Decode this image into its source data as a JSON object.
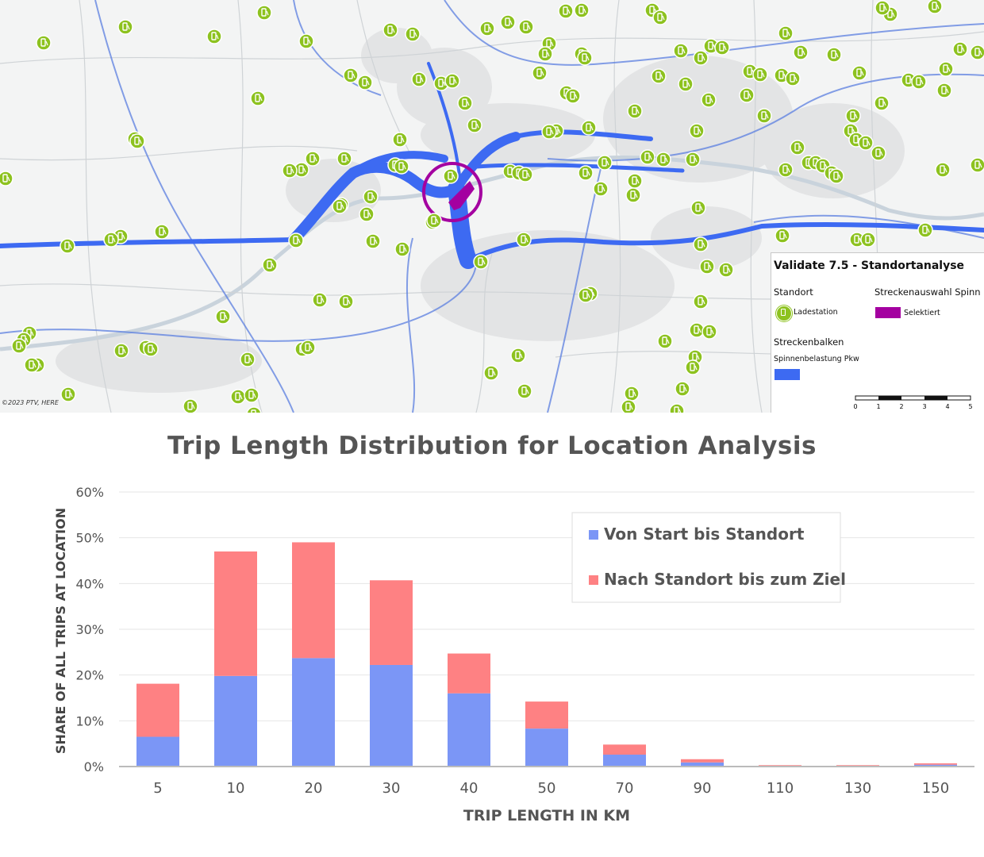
{
  "map": {
    "attribution": "©2023 PTV, HERE",
    "legend": {
      "title": "Validate 7.5 - Standortanalyse",
      "standort_heading": "Standort",
      "standort_item": "Ladestation",
      "strecken_heading": "Streckenauswahl Spinn",
      "strecken_item": "Selektiert",
      "balken_heading": "Streckenbalken",
      "balken_item": "Spinnenbelastung Pkw",
      "scale_labels": [
        "0",
        "1",
        "2",
        "3",
        "4",
        "5"
      ]
    },
    "colors": {
      "station": "#8dc21f",
      "flow": "#3d6af2",
      "selected": "#a400a0"
    },
    "icon": "charging-station-icon"
  },
  "chart_data": {
    "type": "bar",
    "stacked": true,
    "title": "Trip Length Distribution for Location Analysis",
    "xlabel": "TRIP LENGTH IN KM",
    "ylabel": "SHARE OF ALL TRIPS AT LOCATION",
    "ylim": [
      0,
      60
    ],
    "yticks": [
      "0%",
      "10%",
      "20%",
      "30%",
      "40%",
      "50%",
      "60%"
    ],
    "categories": [
      "5",
      "10",
      "20",
      "30",
      "40",
      "50",
      "70",
      "90",
      "110",
      "130",
      "150"
    ],
    "series": [
      {
        "name": "Von Start bis Standort",
        "color": "#7b96f6",
        "values": [
          6.5,
          19.8,
          23.7,
          22.2,
          16.0,
          8.3,
          2.6,
          0.9,
          0.1,
          0.1,
          0.4
        ]
      },
      {
        "name": "Nach Standort bis zum Ziel",
        "color": "#fe8183",
        "values": [
          11.6,
          27.2,
          25.3,
          18.5,
          8.7,
          5.9,
          2.2,
          0.7,
          0.2,
          0.2,
          0.3
        ]
      }
    ],
    "grid": true,
    "legend_position": "top-right"
  }
}
